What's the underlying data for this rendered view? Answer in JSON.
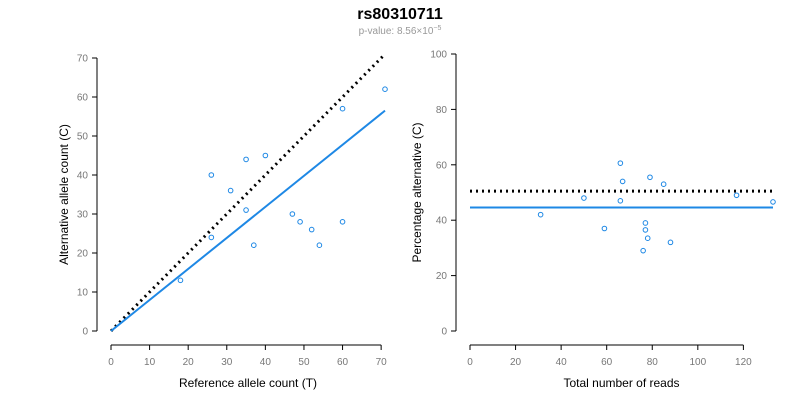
{
  "title": "rs80310711",
  "subtitle": {
    "prefix": "p-value: 8.56×10",
    "exponent": "−5"
  },
  "colors": {
    "points": "#1e88e5",
    "fit_line": "#1e88e5",
    "reference_line": "#000000",
    "tick_labels": "#777777",
    "subtitle": "#999999"
  },
  "chart_data": [
    {
      "type": "scatter",
      "xlabel": "Reference allele count (T)",
      "ylabel": "Alternative allele count (C)",
      "xlim": [
        0,
        71
      ],
      "ylim": [
        0,
        70
      ],
      "xticks": [
        0,
        10,
        20,
        30,
        40,
        50,
        60,
        70
      ],
      "yticks": [
        0,
        10,
        20,
        30,
        40,
        50,
        60,
        70
      ],
      "grid": false,
      "points": {
        "x": [
          18,
          26,
          26,
          31,
          35,
          35,
          37,
          40,
          47,
          49,
          52,
          54,
          60,
          60,
          71
        ],
        "y": [
          13,
          40,
          24,
          36,
          44,
          31,
          22,
          45,
          30,
          28,
          26,
          22,
          28,
          57,
          62
        ]
      },
      "fit_line": {
        "x": [
          0,
          71
        ],
        "y": [
          0,
          56.5
        ]
      },
      "reference_line": {
        "x": [
          0,
          71
        ],
        "y": [
          0,
          71
        ]
      }
    },
    {
      "type": "scatter",
      "xlabel": "Total number of reads",
      "ylabel": "Percentage alternative (C)",
      "xlim": [
        0,
        133
      ],
      "ylim": [
        0,
        100
      ],
      "xticks": [
        0,
        20,
        40,
        60,
        80,
        100,
        120
      ],
      "yticks": [
        0,
        20,
        40,
        60,
        80,
        100
      ],
      "grid": false,
      "points": {
        "x": [
          31,
          50,
          59,
          66,
          66,
          67,
          76,
          77,
          77,
          78,
          79,
          85,
          88,
          117,
          133
        ],
        "y": [
          42,
          48,
          37,
          60.6,
          47,
          54,
          29,
          39,
          36.5,
          33.5,
          55.5,
          53,
          32,
          49,
          46.6
        ]
      },
      "fit_line": {
        "x": [
          0,
          133
        ],
        "y": [
          44.6,
          44.6
        ]
      },
      "reference_line": {
        "x": [
          0,
          133
        ],
        "y": [
          50.5,
          50.5
        ]
      }
    }
  ]
}
